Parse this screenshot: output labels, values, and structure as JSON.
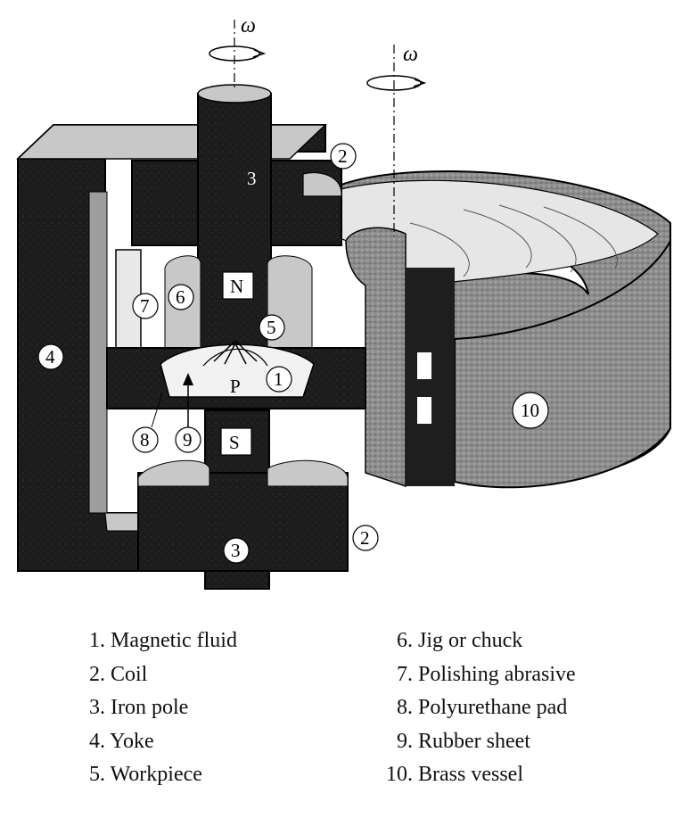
{
  "diagram": {
    "omega_symbol": "ω",
    "pole_labels": {
      "north": "N",
      "south": "S",
      "workpiece_center": "P"
    },
    "callouts": [
      "1",
      "2",
      "3",
      "4",
      "5",
      "6",
      "7",
      "8",
      "9",
      "10"
    ]
  },
  "legend": [
    {
      "number": "1.",
      "label": "Magnetic fluid"
    },
    {
      "number": "2.",
      "label": "Coil"
    },
    {
      "number": "3.",
      "label": "Iron pole"
    },
    {
      "number": "4.",
      "label": "Yoke"
    },
    {
      "number": "5.",
      "label": "Workpiece"
    },
    {
      "number": "6.",
      "label": "Jig or chuck"
    },
    {
      "number": "7.",
      "label": "Polishing abrasive"
    },
    {
      "number": "8.",
      "label": "Polyurethane pad"
    },
    {
      "number": "9.",
      "label": "Rubber sheet"
    },
    {
      "number": "10.",
      "label": "Brass vessel"
    }
  ],
  "colors": {
    "dark": "#1e1e1e",
    "grey": "#9a9a9a",
    "light": "#d4d4d4",
    "fluid": "#eeeeee"
  }
}
